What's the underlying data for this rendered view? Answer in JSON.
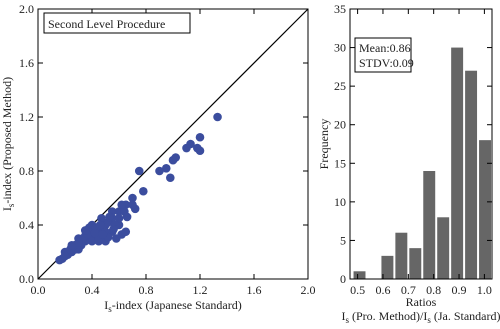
{
  "chart_data": [
    {
      "type": "scatter",
      "annotations": [
        "Second Level Procedure"
      ],
      "xlabel": [
        [
          "I",
          "s",
          "-index (Japanese Standard)"
        ]
      ],
      "ylabel": [
        [
          "I",
          "s",
          "-index (Proposed Method)"
        ]
      ],
      "xlim": [
        0,
        2
      ],
      "ylim": [
        0,
        2
      ],
      "xticks": [
        {
          "value": 0,
          "label": "0.0"
        },
        0.4,
        0.8,
        1.2,
        1.6,
        {
          "value": 2,
          "label": "2.0"
        }
      ],
      "yticks": [
        {
          "value": 0,
          "label": "0.0"
        },
        0.4,
        0.8,
        1.2,
        1.6,
        {
          "value": 2,
          "label": "2.0"
        }
      ],
      "color": "#3b4d9e",
      "x": [
        1.33,
        1.2,
        1.18,
        1.2,
        1.1,
        1.13,
        1.0,
        1.02,
        0.98,
        0.95,
        0.9,
        0.75,
        0.7,
        0.72,
        0.65,
        0.6,
        0.55,
        0.6,
        0.62,
        0.5,
        0.55,
        0.58,
        0.5,
        0.45,
        0.42,
        0.4,
        0.48,
        0.38,
        0.35,
        0.32,
        0.3,
        0.28,
        0.25,
        0.22,
        0.2,
        0.18,
        0.16,
        0.3,
        0.35,
        0.4,
        0.45,
        0.5,
        0.52,
        0.47,
        0.55,
        0.6,
        0.57,
        0.4,
        0.38,
        0.43,
        0.33,
        0.27,
        0.37,
        0.5,
        0.52,
        0.64,
        0.66,
        0.62,
        0.78,
        0.7,
        0.45,
        0.3,
        0.24,
        0.2,
        0.42,
        0.48,
        0.35,
        0.56,
        0.46,
        0.53,
        0.25,
        0.65
      ],
      "y": [
        1.2,
        1.05,
        0.97,
        0.95,
        0.97,
        1.0,
        0.88,
        0.9,
        0.75,
        0.82,
        0.8,
        0.8,
        0.6,
        0.52,
        0.55,
        0.5,
        0.45,
        0.4,
        0.33,
        0.4,
        0.35,
        0.3,
        0.32,
        0.35,
        0.3,
        0.35,
        0.38,
        0.3,
        0.28,
        0.25,
        0.3,
        0.22,
        0.2,
        0.18,
        0.2,
        0.15,
        0.14,
        0.22,
        0.32,
        0.28,
        0.28,
        0.28,
        0.42,
        0.45,
        0.5,
        0.45,
        0.4,
        0.4,
        0.38,
        0.38,
        0.3,
        0.25,
        0.33,
        0.35,
        0.31,
        0.5,
        0.46,
        0.55,
        0.65,
        0.55,
        0.3,
        0.27,
        0.22,
        0.17,
        0.34,
        0.33,
        0.36,
        0.37,
        0.4,
        0.46,
        0.25,
        0.35
      ]
    },
    {
      "type": "histogram",
      "annotations": [
        "Mean:0.86",
        "STDV:0.09"
      ],
      "xlabel": [
        [
          "Ratios"
        ],
        [
          "I",
          "s",
          " (Pro. Method)/I",
          "s",
          " (Ja. Standard)"
        ]
      ],
      "ylabel": [
        [
          "Frequency"
        ]
      ],
      "xlim": [
        0.47,
        1.03
      ],
      "ylim": [
        0,
        35
      ],
      "xticks": [
        0.5,
        0.6,
        0.7,
        0.8,
        0.9,
        {
          "value": 1,
          "label": "1.0"
        }
      ],
      "yticks": [
        0,
        5,
        10,
        15,
        20,
        25,
        30,
        35
      ],
      "color": "#666666",
      "bins": [
        0.48,
        0.535,
        0.59,
        0.645,
        0.7,
        0.755,
        0.81,
        0.865,
        0.92,
        0.975,
        1.03
      ],
      "counts": [
        1,
        0,
        3,
        6,
        4,
        14,
        8,
        30,
        27,
        18
      ]
    }
  ]
}
